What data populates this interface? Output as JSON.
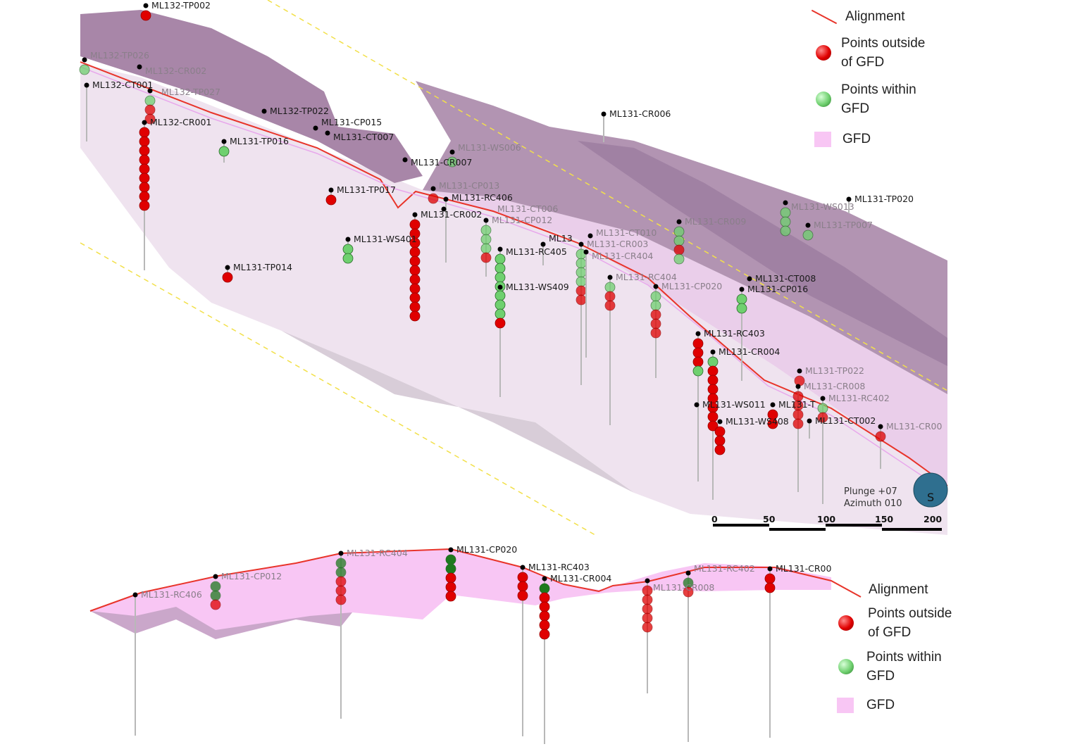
{
  "colors": {
    "alignment": "#e8342a",
    "outside_gfd": "#e00000",
    "within_gfd": "#6fd06f",
    "gfd": "#f8c6f4",
    "gfd_surface": "#a886a8",
    "guide_line": "#f2e04a"
  },
  "top_view": {
    "labels": [
      "ML132-TP002",
      "ML132-TP026",
      "ML132-CR002",
      "ML132-CT001",
      "ML132-TP027",
      "ML132-TP022",
      "ML132-CR001",
      "ML131-CP015",
      "ML131-CT007",
      "ML131-TP016",
      "ML131-CR007",
      "ML131-WS006",
      "ML131-TP017",
      "ML131-CP013",
      "ML131-RC406",
      "ML131-CT006",
      "ML131-CR002",
      "ML131-CP012",
      "ML131-WS401",
      "ML131-RC405",
      "ML13",
      "ML131-CT010",
      "ML131-CR003",
      "ML131-CR404",
      "ML131-TP014",
      "ML131-RC404",
      "ML131-CP020",
      "ML131-WS409",
      "ML131-CR006",
      "ML131-CR009",
      "ML131-WS013",
      "ML131-TP020",
      "ML131-TP007",
      "ML131-CT008",
      "ML131-CP016",
      "ML131-RC403",
      "ML131-CR004",
      "ML131-TP022",
      "ML131-CR008",
      "ML131-RC402",
      "ML131-WS011",
      "ML131-T",
      "ML131-WS408",
      "ML131-CT002",
      "ML131-CR00"
    ],
    "orientation": {
      "plunge": "Plunge +07",
      "azimuth": "Azimuth 010"
    },
    "compass_letter": "S",
    "scale_ticks": [
      "0",
      "50",
      "100",
      "150",
      "200"
    ],
    "legend": {
      "alignment": "Alignment",
      "outside": "Points outside of GFD",
      "within": "Points within GFD",
      "gfd": "GFD"
    }
  },
  "section_view": {
    "labels": [
      "ML131-RC406",
      "ML131-CP012",
      "ML131-RC404",
      "ML131-CP020",
      "ML131-RC403",
      "ML131-CR004",
      "ML131-CR008",
      "ML131-RC402",
      "ML131-CR00"
    ],
    "legend": {
      "alignment": "Alignment",
      "outside": "Points outside of GFD",
      "within": "Points within GFD",
      "gfd": "GFD"
    }
  }
}
